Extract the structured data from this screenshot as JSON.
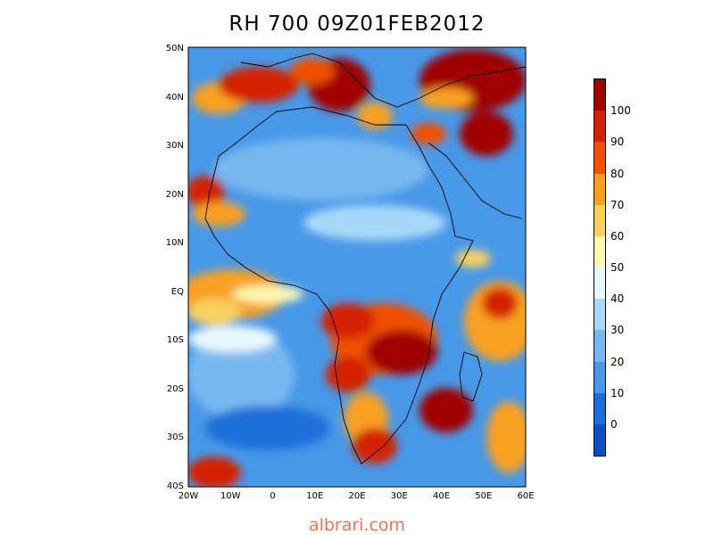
{
  "title": "RH 700 09Z01FEB2012",
  "credit": "albrari.com",
  "lat_labels": [
    "50N",
    "40N",
    "30N",
    "20N",
    "10N",
    "EQ",
    "10S",
    "20S",
    "30S",
    "40S"
  ],
  "lon_labels": [
    "20W",
    "10W",
    "0",
    "10E",
    "20E",
    "30E",
    "40E",
    "50E",
    "60E"
  ],
  "map_extent": {
    "lon_min": -20,
    "lon_max": 60,
    "lat_min": -40,
    "lat_max": 50
  },
  "colorbar": {
    "levels": [
      "100",
      "90",
      "80",
      "70",
      "60",
      "50",
      "40",
      "30",
      "20",
      "10",
      "0"
    ],
    "colors": [
      "#a00000",
      "#d42000",
      "#f05000",
      "#f8a020",
      "#f8d060",
      "#fff8b0",
      "#e8f8ff",
      "#a8d8f8",
      "#78b8f0",
      "#4898e8",
      "#1a70d8",
      "#0a50c0"
    ]
  },
  "colors": {
    "background_field": "#4898e8",
    "dry": "#78b8f0",
    "moist": "#f8a020",
    "saturated": "#a00000",
    "coastline": "#000000",
    "credit": "#f07050"
  }
}
